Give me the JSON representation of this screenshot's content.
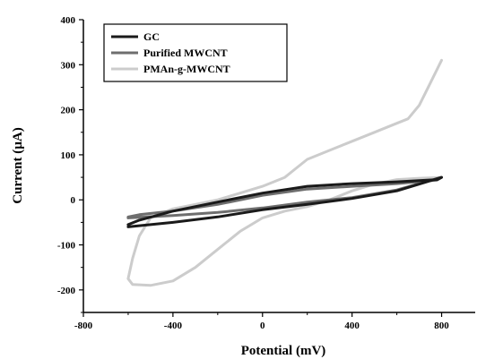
{
  "chart_data": {
    "type": "line",
    "title": "",
    "xlabel": "Potential (mV)",
    "ylabel": "Current (µA)",
    "xlim": [
      -800,
      950
    ],
    "ylim": [
      -250,
      400
    ],
    "x_ticks": [
      -800,
      -400,
      0,
      400,
      800
    ],
    "y_ticks": [
      -200,
      -100,
      0,
      100,
      200,
      300,
      400
    ],
    "x_tick_labels": [
      "-800",
      "-400",
      "0",
      "400",
      "800"
    ],
    "y_tick_labels": [
      "-200",
      "-100",
      "0",
      "100",
      "200",
      "300",
      "400"
    ],
    "grid": false,
    "legend_position": "top-left",
    "legend_labels": [
      "GC",
      "Purified MWCNT",
      "PMAn-g-MWCNT"
    ],
    "series": [
      {
        "name": "GC",
        "color": "#1a1a1a",
        "x": [
          -600,
          -400,
          -200,
          0,
          200,
          400,
          600,
          800,
          780,
          600,
          400,
          200,
          0,
          -200,
          -400,
          -550,
          -600
        ],
        "y": [
          -60,
          -50,
          -38,
          -22,
          -10,
          3,
          20,
          50,
          45,
          40,
          36,
          30,
          15,
          -5,
          -25,
          -45,
          -55
        ]
      },
      {
        "name": "Purified MWCNT",
        "color": "#6e6e6e",
        "x": [
          -600,
          -400,
          -200,
          0,
          200,
          400,
          600,
          800,
          780,
          600,
          400,
          200,
          0,
          -200,
          -400,
          -550,
          -600
        ],
        "y": [
          -40,
          -35,
          -28,
          -18,
          -5,
          5,
          22,
          50,
          44,
          36,
          30,
          24,
          10,
          -10,
          -25,
          -33,
          -38
        ]
      },
      {
        "name": "PMAn-g-MWCNT",
        "color": "#cccccc",
        "x": [
          800,
          750,
          700,
          650,
          600,
          500,
          400,
          300,
          200,
          150,
          100,
          0,
          -100,
          -200,
          -300,
          -400,
          -500,
          -550,
          -580,
          -600,
          -580,
          -500,
          -400,
          -300,
          -200,
          -100,
          0,
          100,
          200,
          300,
          400,
          500,
          600,
          700,
          750,
          800
        ],
        "y": [
          310,
          260,
          210,
          180,
          170,
          150,
          130,
          110,
          90,
          70,
          50,
          30,
          15,
          0,
          -10,
          -20,
          -40,
          -80,
          -130,
          -175,
          -188,
          -190,
          -180,
          -150,
          -110,
          -70,
          -40,
          -25,
          -15,
          0,
          20,
          35,
          45,
          48,
          49,
          50
        ]
      }
    ]
  }
}
